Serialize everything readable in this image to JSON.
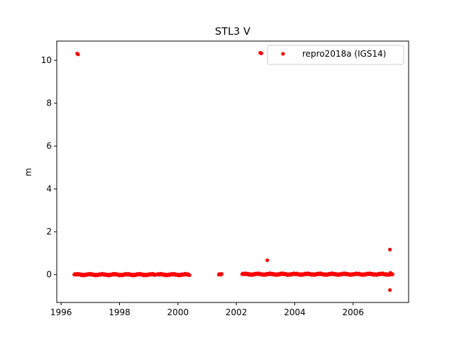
{
  "chart_data": {
    "type": "scatter",
    "title": "STL3 V",
    "xlabel": "",
    "ylabel": "m",
    "xlim": [
      1995.85,
      2007.9
    ],
    "ylim": [
      -1.3,
      10.9
    ],
    "xticks": [
      1996,
      1998,
      2000,
      2002,
      2004,
      2006
    ],
    "xtick_labels": [
      "1996",
      "1998",
      "2000",
      "2002",
      "2004",
      "2006"
    ],
    "yticks": [
      0,
      2,
      4,
      6,
      8,
      10
    ],
    "ytick_labels": [
      "0",
      "2",
      "4",
      "6",
      "8",
      "10"
    ],
    "grid": false,
    "legend_position": "upper right",
    "series": [
      {
        "name": "repro2018a (IGS14)",
        "color": "#ff0000",
        "marker": "dot",
        "segments": [
          {
            "x_start": 1996.45,
            "x_end": 1999.25,
            "y": 0.0
          },
          {
            "x_start": 1999.3,
            "x_end": 2000.4,
            "y": 0.0
          },
          {
            "x_start": 2001.4,
            "x_end": 2001.5,
            "y": 0.0
          },
          {
            "x_start": 2002.2,
            "x_end": 2007.35,
            "y": 0.02
          }
        ],
        "points": [
          {
            "x": 1996.55,
            "y": 10.32
          },
          {
            "x": 1996.58,
            "y": 10.28
          },
          {
            "x": 2002.82,
            "y": 10.35
          },
          {
            "x": 2002.86,
            "y": 10.33
          },
          {
            "x": 2003.06,
            "y": 0.67
          },
          {
            "x": 2007.26,
            "y": 1.17
          },
          {
            "x": 2007.26,
            "y": -0.72
          },
          {
            "x": 2007.28,
            "y": 0.08
          }
        ]
      }
    ]
  }
}
